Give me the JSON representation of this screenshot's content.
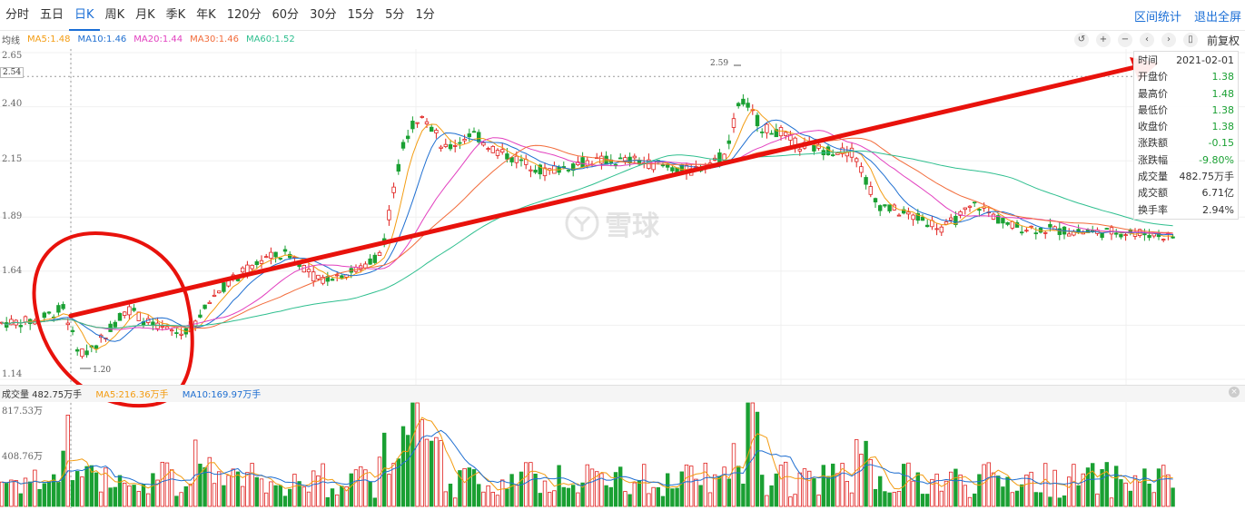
{
  "periods": [
    "分时",
    "五日",
    "日K",
    "周K",
    "月K",
    "季K",
    "年K",
    "120分",
    "60分",
    "30分",
    "15分",
    "5分",
    "1分"
  ],
  "active_period": "日K",
  "top_links": {
    "range_stats": "区间统计",
    "fullscreen": "退出全屏"
  },
  "ma_legend": {
    "label": "均线",
    "items": [
      {
        "text": "MA5:1.48",
        "color": "#f39c12"
      },
      {
        "text": "MA10:1.46",
        "color": "#1f6fd1"
      },
      {
        "text": "MA20:1.44",
        "color": "#e23fbf"
      },
      {
        "text": "MA30:1.46",
        "color": "#f26b3a"
      },
      {
        "text": "MA60:1.52",
        "color": "#2fbf8f"
      }
    ]
  },
  "controls": {
    "icons": [
      "undo-icon",
      "zoom-in-icon",
      "zoom-out-icon",
      "prev-icon",
      "next-icon",
      "bookmark-icon"
    ],
    "glyphs": [
      "↺",
      "+",
      "−",
      "‹",
      "›",
      "▯"
    ],
    "adjust_label": "前复权"
  },
  "price_axis": [
    "2.65",
    "2.40",
    "2.15",
    "1.89",
    "1.64",
    "1.14"
  ],
  "current_price_label": "2.54",
  "annotations": {
    "high": "2.59",
    "low": "1.20"
  },
  "info_panel": [
    {
      "k": "时间",
      "v": "2021-02-01",
      "c": "#333333"
    },
    {
      "k": "开盘价",
      "v": "1.38",
      "c": "#1aa033"
    },
    {
      "k": "最高价",
      "v": "1.48",
      "c": "#1aa033"
    },
    {
      "k": "最低价",
      "v": "1.38",
      "c": "#1aa033"
    },
    {
      "k": "收盘价",
      "v": "1.38",
      "c": "#1aa033"
    },
    {
      "k": "涨跌额",
      "v": "-0.15",
      "c": "#1aa033"
    },
    {
      "k": "涨跌幅",
      "v": "-9.80%",
      "c": "#1aa033"
    },
    {
      "k": "成交量",
      "v": "482.75万手",
      "c": "#333333"
    },
    {
      "k": "成交额",
      "v": "6.71亿",
      "c": "#333333"
    },
    {
      "k": "换手率",
      "v": "2.94%",
      "c": "#333333"
    }
  ],
  "volume_legend": {
    "vol": "成交量 482.75万手",
    "ma5": "MA5:216.36万手",
    "ma10": "MA10:169.97万手"
  },
  "volume_axis": [
    "817.53万",
    "408.76万"
  ],
  "watermark": "雪球",
  "colors": {
    "up": "#e0201e",
    "down": "#1aa033",
    "accent": "#1a6ed6",
    "trend": "#e8120c"
  }
}
